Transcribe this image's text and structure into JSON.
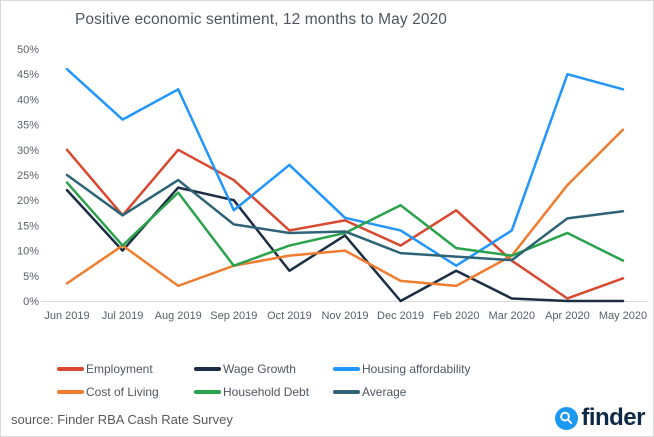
{
  "chart_data": {
    "type": "line",
    "title": "Positive economic sentiment, 12 months to May 2020",
    "x": [
      "Jun 2019",
      "Jul 2019",
      "Aug 2019",
      "Sep 2019",
      "Oct 2019",
      "Nov 2019",
      "Dec 2019",
      "Feb 2020",
      "Mar 2020",
      "Apr 2020",
      "May 2020"
    ],
    "series": [
      {
        "name": "Employment",
        "color": "#d8492f",
        "values": [
          30,
          17,
          30,
          24,
          14,
          16,
          11,
          18,
          8,
          0.5,
          4.5
        ]
      },
      {
        "name": "Wage Growth",
        "color": "#1b2e44",
        "values": [
          22,
          10,
          22.5,
          20,
          6,
          13,
          0,
          6,
          0.5,
          0,
          0
        ]
      },
      {
        "name": "Housing affordability",
        "color": "#2196fb",
        "values": [
          46,
          36,
          42,
          18,
          27,
          16.5,
          14,
          7,
          14,
          45,
          42
        ]
      },
      {
        "name": "Cost of Living",
        "color": "#ef7d30",
        "values": [
          3.5,
          11,
          3,
          7,
          9,
          10,
          4,
          3,
          9,
          23,
          34
        ]
      },
      {
        "name": "Household Debt",
        "color": "#2aa24c",
        "values": [
          23.5,
          11,
          21.5,
          7,
          11,
          13.5,
          19,
          10.5,
          9,
          13.5,
          8
        ]
      },
      {
        "name": "Average",
        "color": "#2e6476",
        "values": [
          25,
          17,
          24,
          15.2,
          13.5,
          13.8,
          9.5,
          8.8,
          8.1,
          16.4,
          17.8
        ]
      }
    ],
    "y_ticks": [
      "0%",
      "5%",
      "10%",
      "15%",
      "20%",
      "25%",
      "30%",
      "35%",
      "40%",
      "45%",
      "50%"
    ],
    "ylim": [
      0,
      50
    ],
    "xlabel": "",
    "ylabel": "",
    "grid": false,
    "legend_position": "bottom"
  },
  "footer": {
    "source_text": "source: Finder RBA Cash Rate Survey"
  },
  "logo": {
    "text": "finder",
    "icon": "magnifier-icon",
    "icon_color": "#1b99f1",
    "text_color": "#0d2a46"
  }
}
